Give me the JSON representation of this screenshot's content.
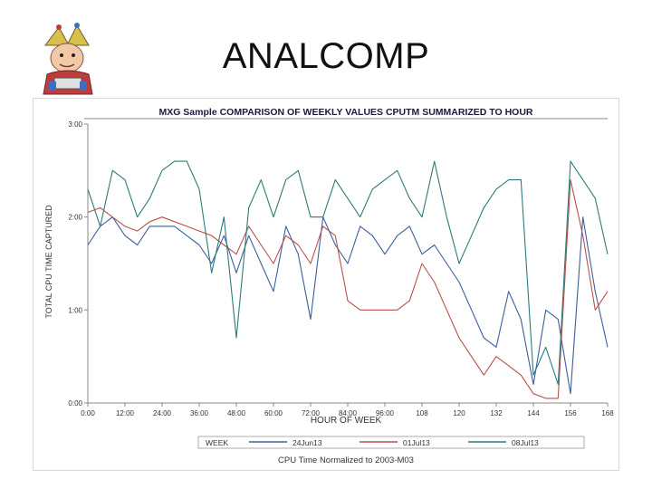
{
  "slide": {
    "title": "ANALCOMP"
  },
  "mascot": {
    "icon": "jester-mascot-icon"
  },
  "chart_data": {
    "type": "line",
    "title": "MXG Sample COMPARISON OF WEEKLY VALUES CPUTM SUMMARIZED TO HOUR",
    "footnote": "CPU Time Normalized to 2003-M03",
    "xlabel": "HOUR OF WEEK",
    "ylabel": "TOTAL CPU TIME CAPTURED",
    "xlim": [
      0,
      168
    ],
    "ylim": [
      0,
      3
    ],
    "x_ticks": [
      0,
      12,
      24,
      36,
      48,
      60,
      72,
      84,
      96,
      108,
      120,
      132,
      144,
      156,
      168
    ],
    "x_tick_labels": [
      "0:00",
      "12:00",
      "24:00",
      "36:00",
      "48:00",
      "60:00",
      "72:00",
      "84:00",
      "96:00",
      "108",
      "120",
      "132",
      "144",
      "156",
      "168"
    ],
    "y_ticks": [
      0,
      1,
      2,
      3
    ],
    "y_tick_labels": [
      "0:00",
      "1:00",
      "2:00",
      "3:00"
    ],
    "grid": false,
    "legend": {
      "label": "WEEK",
      "placement": "bottom"
    },
    "series": [
      {
        "name": "24Jun13",
        "color": "#3b5f9e",
        "x": [
          0,
          4,
          8,
          12,
          16,
          20,
          24,
          28,
          32,
          36,
          40,
          44,
          48,
          52,
          56,
          60,
          64,
          68,
          72,
          76,
          80,
          84,
          88,
          92,
          96,
          100,
          104,
          108,
          112,
          116,
          120,
          124,
          128,
          132,
          136,
          140,
          144,
          148,
          152,
          156,
          160,
          164,
          168
        ],
        "values": [
          1.7,
          1.9,
          2.0,
          1.8,
          1.7,
          1.9,
          1.9,
          1.9,
          1.8,
          1.7,
          1.5,
          1.8,
          1.4,
          1.8,
          1.5,
          1.2,
          1.9,
          1.6,
          0.9,
          2.0,
          1.7,
          1.5,
          1.9,
          1.8,
          1.6,
          1.8,
          1.9,
          1.6,
          1.7,
          1.5,
          1.3,
          1.0,
          0.7,
          0.6,
          1.2,
          0.9,
          0.2,
          1.0,
          0.9,
          0.1,
          2.0,
          1.2,
          0.6
        ]
      },
      {
        "name": "01Jul13",
        "color": "#b8504b",
        "x": [
          0,
          4,
          8,
          12,
          16,
          20,
          24,
          28,
          32,
          36,
          40,
          44,
          48,
          52,
          56,
          60,
          64,
          68,
          72,
          76,
          80,
          84,
          88,
          92,
          96,
          100,
          104,
          108,
          112,
          116,
          120,
          124,
          128,
          132,
          136,
          140,
          144,
          148,
          152,
          156,
          160,
          164,
          168
        ],
        "values": [
          2.05,
          2.1,
          2.0,
          1.9,
          1.85,
          1.95,
          2.0,
          1.95,
          1.9,
          1.85,
          1.8,
          1.7,
          1.6,
          1.9,
          1.7,
          1.5,
          1.8,
          1.7,
          1.5,
          1.9,
          1.8,
          1.1,
          1.0,
          1.0,
          1.0,
          1.0,
          1.1,
          1.5,
          1.3,
          1.0,
          0.7,
          0.5,
          0.3,
          0.5,
          0.4,
          0.3,
          0.1,
          0.05,
          0.05,
          2.4,
          1.8,
          1.0,
          1.2
        ]
      },
      {
        "name": "08Jul13",
        "color": "#2f7a7a",
        "x": [
          0,
          4,
          8,
          12,
          16,
          20,
          24,
          28,
          32,
          36,
          40,
          44,
          48,
          52,
          56,
          60,
          64,
          68,
          72,
          76,
          80,
          84,
          88,
          92,
          96,
          100,
          104,
          108,
          112,
          116,
          120,
          124,
          128,
          132,
          136,
          140,
          144,
          148,
          152,
          156,
          160,
          164,
          168
        ],
        "values": [
          2.3,
          1.9,
          2.5,
          2.4,
          2.0,
          2.2,
          2.5,
          2.6,
          2.6,
          2.3,
          1.4,
          2.0,
          0.7,
          2.1,
          2.4,
          2.0,
          2.4,
          2.5,
          2.0,
          2.0,
          2.4,
          2.2,
          2.0,
          2.3,
          2.4,
          2.5,
          2.2,
          2.0,
          2.6,
          2.0,
          1.5,
          1.8,
          2.1,
          2.3,
          2.4,
          2.4,
          0.3,
          0.6,
          0.2,
          2.6,
          2.4,
          2.2,
          1.6
        ]
      }
    ]
  }
}
